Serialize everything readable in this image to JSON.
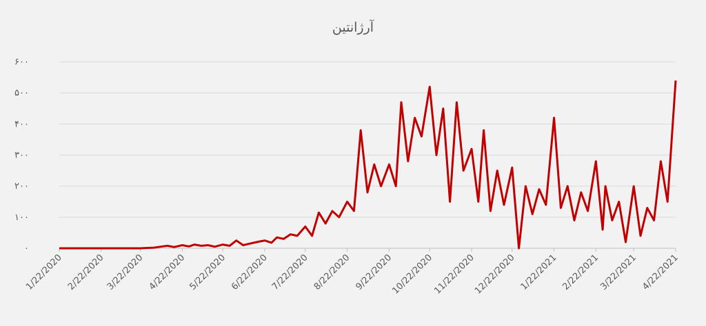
{
  "chart_data": {
    "type": "line",
    "title": "آرژانتین",
    "x": [
      "1/22/2020",
      "1/27/2020",
      "2/1/2020",
      "2/6/2020",
      "2/11/2020",
      "2/16/2020",
      "2/22/2020",
      "2/27/2020",
      "3/1/2020",
      "3/6/2020",
      "3/11/2020",
      "3/16/2020",
      "3/22/2020",
      "3/27/2020",
      "4/1/2020",
      "4/6/2020",
      "4/11/2020",
      "4/16/2020",
      "4/22/2020",
      "4/27/2020",
      "5/1/2020",
      "5/6/2020",
      "5/11/2020",
      "5/16/2020",
      "5/22/2020",
      "5/27/2020",
      "6/1/2020",
      "6/6/2020",
      "6/11/2020",
      "6/16/2020",
      "6/22/2020",
      "6/27/2020",
      "7/1/2020",
      "7/6/2020",
      "7/11/2020",
      "7/16/2020",
      "7/22/2020",
      "7/27/2020",
      "8/1/2020",
      "8/6/2020",
      "8/11/2020",
      "8/16/2020",
      "8/22/2020",
      "8/27/2020",
      "9/1/2020",
      "9/6/2020",
      "9/11/2020",
      "9/16/2020",
      "9/22/2020",
      "9/27/2020",
      "10/1/2020",
      "10/6/2020",
      "10/11/2020",
      "10/16/2020",
      "10/22/2020",
      "10/27/2020",
      "11/1/2020",
      "11/6/2020",
      "11/11/2020",
      "11/16/2020",
      "11/22/2020",
      "11/27/2020",
      "12/1/2020",
      "12/6/2020",
      "12/11/2020",
      "12/16/2020",
      "12/22/2020",
      "12/27/2020",
      "1/1/2021",
      "1/6/2021",
      "1/11/2021",
      "1/16/2021",
      "1/22/2021",
      "1/27/2021",
      "2/1/2021",
      "2/6/2021",
      "2/11/2021",
      "2/16/2021",
      "2/22/2021",
      "2/27/2021",
      "3/1/2021",
      "3/6/2021",
      "3/11/2021",
      "3/16/2021",
      "3/22/2021",
      "3/27/2021",
      "4/1/2021",
      "4/6/2021",
      "4/11/2021",
      "4/16/2021",
      "4/22/2021"
    ],
    "series": [
      {
        "color": "#c00000",
        "values": [
          0,
          0,
          0,
          0,
          0,
          0,
          0,
          0,
          0,
          0,
          0,
          0,
          0,
          1,
          2,
          5,
          8,
          4,
          10,
          6,
          12,
          8,
          10,
          5,
          12,
          8,
          25,
          10,
          15,
          20,
          25,
          18,
          35,
          30,
          45,
          40,
          70,
          40,
          115,
          80,
          120,
          100,
          150,
          120,
          380,
          180,
          270,
          200,
          270,
          200,
          470,
          280,
          420,
          360,
          520,
          300,
          450,
          150,
          470,
          250,
          320,
          150,
          380,
          120,
          250,
          140,
          260,
          0,
          200,
          110,
          190,
          140,
          420,
          130,
          200,
          90,
          180,
          120,
          280,
          60,
          200,
          90,
          150,
          20,
          200,
          40,
          130,
          90,
          280,
          150,
          540
        ]
      }
    ],
    "xticks": [
      "1/22/2020",
      "2/22/2020",
      "3/22/2020",
      "4/22/2020",
      "5/22/2020",
      "6/22/2020",
      "7/22/2020",
      "8/22/2020",
      "9/22/2020",
      "10/22/2020",
      "11/22/2020",
      "12/22/2020",
      "1/22/2021",
      "2/22/2021",
      "3/22/2021",
      "4/22/2021"
    ],
    "ylim": [
      0,
      600
    ],
    "yticks": [
      {
        "value": 0,
        "label": "۰"
      },
      {
        "value": 100,
        "label": "۱۰۰"
      },
      {
        "value": 200,
        "label": "۲۰۰"
      },
      {
        "value": 300,
        "label": "۳۰۰"
      },
      {
        "value": 400,
        "label": "۴۰۰"
      },
      {
        "value": 500,
        "label": "۵۰۰"
      },
      {
        "value": 600,
        "label": "۶۰۰"
      }
    ],
    "grid": true
  }
}
